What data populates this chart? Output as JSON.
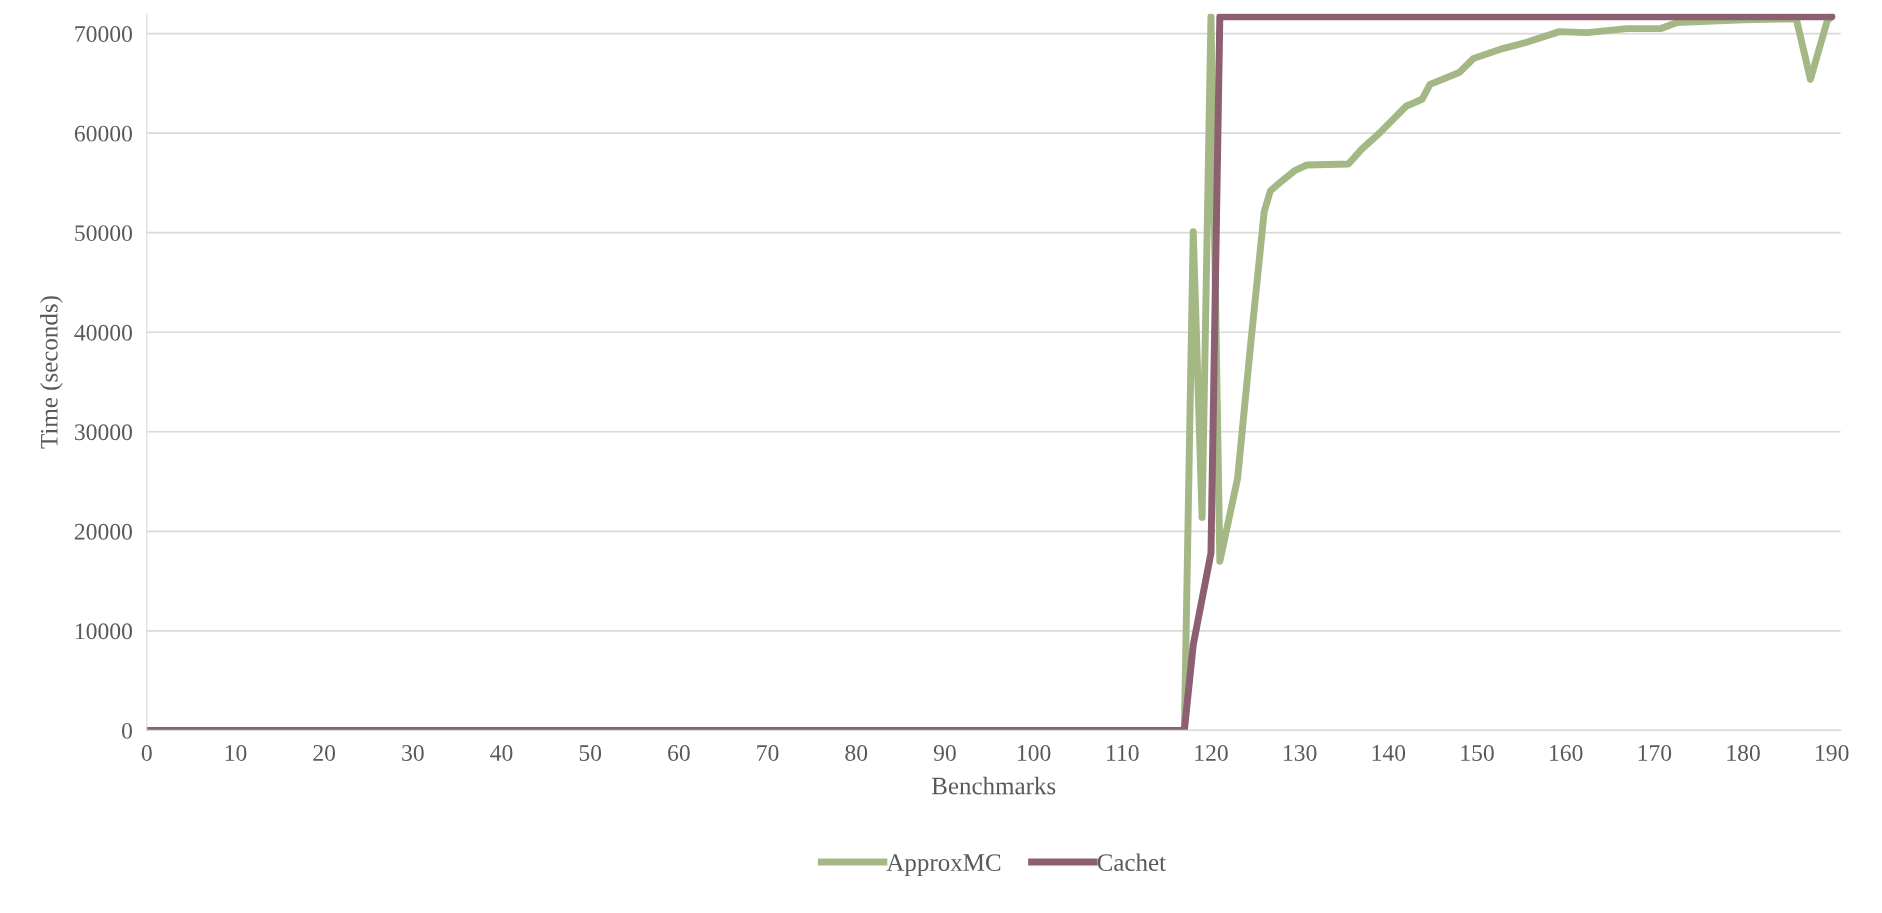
{
  "chart_data": {
    "type": "line",
    "xlabel": "Benchmarks",
    "ylabel": "Time (seconds)",
    "xlim": [
      0,
      191
    ],
    "xticks": [
      0,
      10,
      20,
      30,
      40,
      50,
      60,
      70,
      80,
      90,
      100,
      110,
      120,
      130,
      140,
      150,
      160,
      170,
      180,
      190
    ],
    "ylim": [
      0,
      72000
    ],
    "yticks": [
      0,
      10000,
      20000,
      30000,
      40000,
      50000,
      60000,
      70000
    ],
    "grid": "y",
    "legend": "bottom",
    "marker": "none",
    "line_style": "solid",
    "series": [
      {
        "name": "ApproxMC",
        "color": "#a3b884",
        "x": [
          0,
          20,
          40,
          60,
          80,
          100,
          116,
          117,
          118,
          119,
          120,
          121,
          123,
          124.5,
          126,
          126.7,
          128,
          129.4,
          130.8,
          135.5,
          137,
          139,
          142,
          143.8,
          144.7,
          148,
          149.6,
          152.9,
          155.5,
          159.3,
          162.4,
          166.9,
          170.7,
          172.5,
          180,
          186,
          187.6,
          189.5,
          190
        ],
        "values": [
          0,
          0,
          0,
          0,
          0,
          0,
          0,
          0,
          50100,
          21400,
          71700,
          17000,
          25300,
          39000,
          52100,
          54200,
          55200,
          56200,
          56800,
          56900,
          58400,
          60000,
          62700,
          63400,
          64900,
          66100,
          67500,
          68500,
          69100,
          70200,
          70100,
          70500,
          70500,
          71100,
          71400,
          71500,
          65400,
          71300,
          71700
        ]
      },
      {
        "name": "Cachet",
        "color": "#8c5f72",
        "x": [
          0,
          20,
          40,
          60,
          80,
          100,
          116,
          117,
          118,
          120,
          121,
          150,
          190
        ],
        "values": [
          0,
          0,
          0,
          0,
          0,
          0,
          0,
          0,
          8600,
          17800,
          71700,
          71700,
          71700
        ]
      }
    ]
  }
}
